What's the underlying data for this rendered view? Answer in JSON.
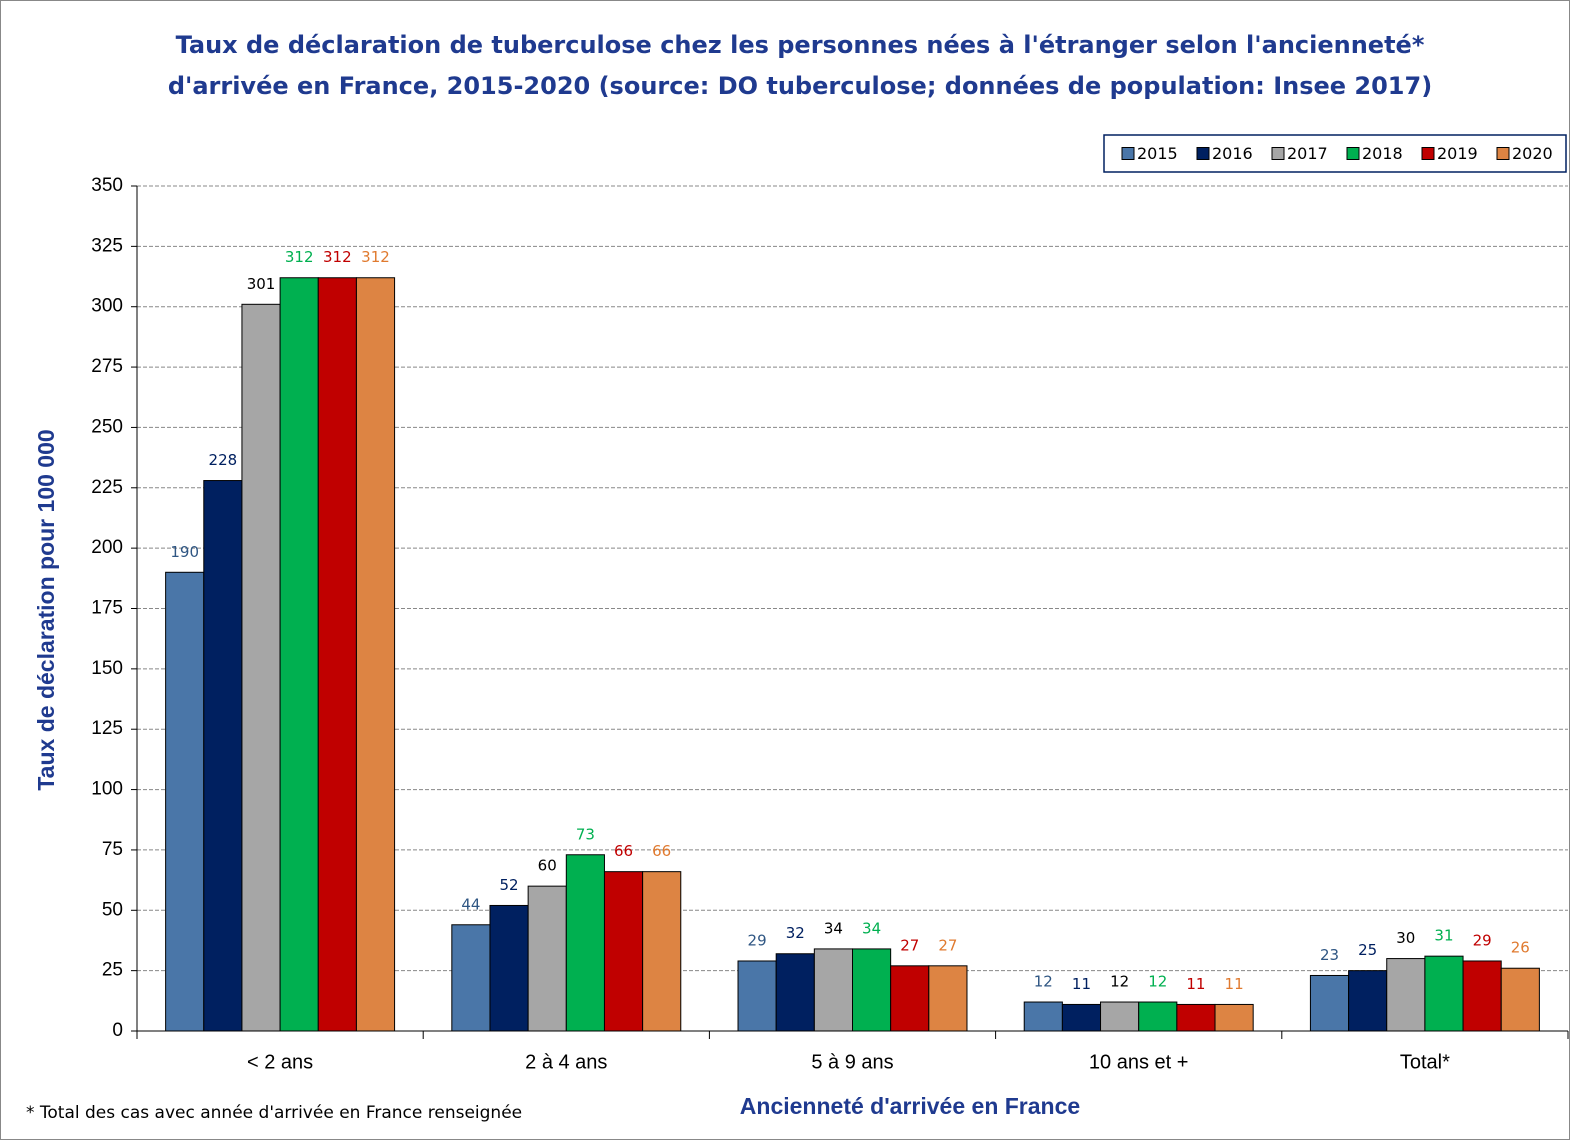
{
  "chart_data": {
    "type": "bar",
    "title": [
      "Taux de déclaration de tuberculose chez les personnes nées à l'étranger selon l'ancienneté*",
      "d'arrivée en France, 2015-2020  (source: DO tuberculose; données de population: Insee 2017)"
    ],
    "x_label": "Ancienneté d'arrivée en France",
    "y_label": "Taux de déclaration pour 100 000",
    "note": "* Total des cas avec année d'arrivée en France renseignée",
    "categories": [
      "< 2 ans",
      "2 à 4 ans",
      "5 à 9 ans",
      "10 ans et +",
      "Total*"
    ],
    "series": [
      {
        "name": "2015",
        "color": "#4a76a8",
        "label_color": "#2f5683",
        "values": [
          190,
          44,
          29,
          12,
          23
        ]
      },
      {
        "name": "2016",
        "color": "#002060",
        "label_color": "#002060",
        "values": [
          228,
          52,
          32,
          11,
          25
        ]
      },
      {
        "name": "2017",
        "color": "#a6a6a6",
        "label_color": "#000000",
        "values": [
          301,
          60,
          34,
          12,
          30
        ]
      },
      {
        "name": "2018",
        "color": "#00b050",
        "label_color": "#00b050",
        "values": [
          312,
          73,
          34,
          12,
          31
        ]
      },
      {
        "name": "2019",
        "color": "#c00000",
        "label_color": "#c00000",
        "values": [
          312,
          66,
          27,
          11,
          29
        ]
      },
      {
        "name": "2020",
        "color": "#dd8443",
        "label_color": "#e07a2f",
        "values": [
          312,
          66,
          27,
          11,
          26
        ]
      }
    ],
    "ylim": [
      0,
      350
    ],
    "yticks": [
      0,
      25,
      50,
      75,
      100,
      125,
      150,
      175,
      200,
      225,
      250,
      275,
      300,
      325,
      350
    ],
    "grid": true,
    "legend": "top-right"
  }
}
